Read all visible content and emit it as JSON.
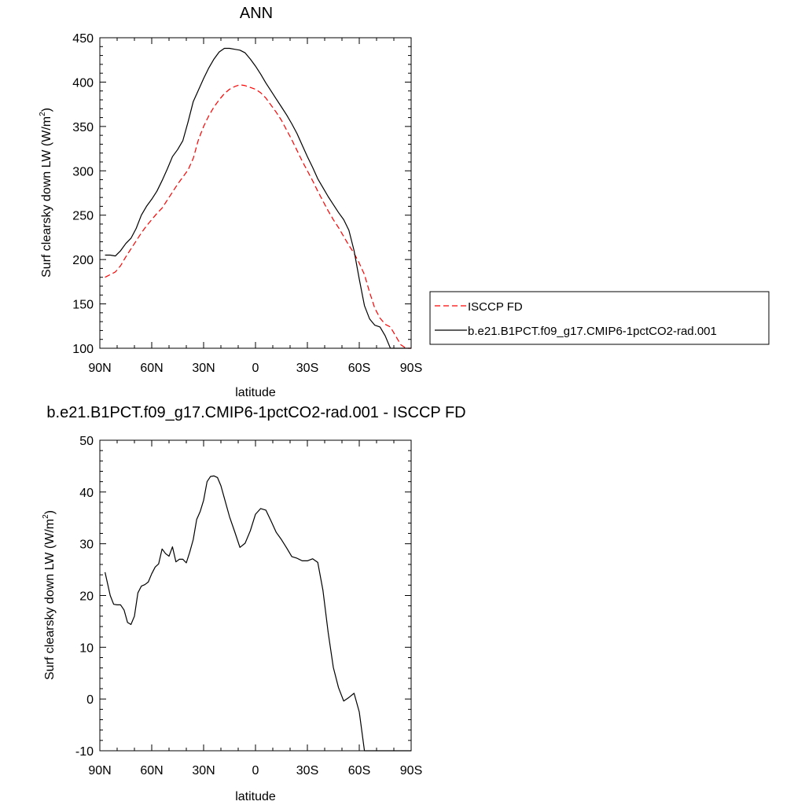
{
  "chart_data": [
    {
      "type": "line",
      "title": "ANN",
      "xlabel": "latitude",
      "ylabel": "Surf clearsky down LW",
      "yunit_base": "W/m",
      "yunit_exp": "2",
      "xlim": [
        90,
        -90
      ],
      "ylim": [
        100,
        450
      ],
      "x_ticks": [
        90,
        60,
        30,
        0,
        -30,
        -60,
        -90
      ],
      "x_tick_labels": [
        "90N",
        "60N",
        "30N",
        "0",
        "30S",
        "60S",
        "90S"
      ],
      "y_ticks": [
        100,
        150,
        200,
        250,
        300,
        350,
        400,
        450
      ],
      "legend": "right",
      "grid": false,
      "x": [
        87,
        84,
        81,
        78,
        75,
        72,
        69,
        66,
        63,
        60,
        57,
        54,
        51,
        48,
        45,
        42,
        39,
        36,
        33,
        30,
        27,
        24,
        21,
        18,
        15,
        12,
        9,
        6,
        3,
        0,
        -3,
        -6,
        -9,
        -12,
        -15,
        -18,
        -21,
        -24,
        -27,
        -30,
        -33,
        -36,
        -39,
        -42,
        -45,
        -48,
        -51,
        -54,
        -57,
        -60,
        -63,
        -66,
        -69,
        -72,
        -75,
        -78,
        -81,
        -84,
        -87,
        -90
      ],
      "series": [
        {
          "name": "ISCCP FD",
          "color": "#ff0000",
          "dash": true,
          "values": [
            180,
            183,
            186,
            193,
            203,
            212,
            221,
            230,
            238,
            245,
            252,
            258,
            267,
            276,
            285,
            293,
            301,
            314,
            335,
            350,
            362,
            372,
            380,
            387,
            392,
            395,
            397,
            396,
            394,
            392,
            388,
            382,
            374,
            366,
            357,
            346,
            335,
            323,
            311,
            300,
            289,
            277,
            266,
            255,
            245,
            236,
            226,
            216,
            207,
            196,
            183,
            163,
            145,
            134,
            127,
            124,
            114,
            104,
            96,
            95
          ]
        },
        {
          "name": "b.e21.B1PCT.f09_g17.CMIP6-1pctCO2-rad.001",
          "color": "#000000",
          "dash": false,
          "values": [
            205,
            205,
            204,
            210,
            218,
            224,
            235,
            250,
            260,
            268,
            277,
            289,
            302,
            316,
            324,
            334,
            355,
            378,
            391,
            404,
            416,
            426,
            434,
            438,
            438,
            437,
            436,
            433,
            426,
            418,
            409,
            399,
            390,
            381,
            372,
            363,
            353,
            342,
            329,
            316,
            304,
            291,
            281,
            271,
            262,
            253,
            245,
            233,
            210,
            178,
            148,
            133,
            126,
            124,
            114,
            96,
            96,
            96,
            96,
            96
          ]
        }
      ]
    },
    {
      "type": "line",
      "title": "b.e21.B1PCT.f09_g17.CMIP6-1pctCO2-rad.001 - ISCCP FD",
      "xlabel": "latitude",
      "ylabel": "Surf clearsky down LW",
      "yunit_base": "W/m",
      "yunit_exp": "2",
      "xlim": [
        90,
        -90
      ],
      "ylim": [
        -10,
        50
      ],
      "x_ticks": [
        90,
        60,
        30,
        0,
        -30,
        -60,
        -90
      ],
      "x_tick_labels": [
        "90N",
        "60N",
        "30N",
        "0",
        "30S",
        "60S",
        "90S"
      ],
      "y_ticks": [
        -10,
        0,
        10,
        20,
        30,
        40,
        50
      ],
      "grid": false,
      "x": [
        87,
        86,
        84,
        82,
        80,
        78,
        76,
        74,
        72,
        70,
        68,
        66,
        64,
        62,
        60,
        58,
        56,
        54,
        52,
        50,
        48,
        46,
        44,
        42,
        40,
        38,
        36,
        34,
        32,
        30,
        28,
        26,
        24,
        22,
        20,
        18,
        15,
        12,
        9,
        6,
        3,
        0,
        -3,
        -6,
        -9,
        -12,
        -15,
        -18,
        -21,
        -24,
        -27,
        -30,
        -33,
        -36,
        -39,
        -42,
        -45,
        -48,
        -51,
        -54,
        -57,
        -60,
        -63,
        -66,
        -69,
        -72,
        -75,
        -78,
        -81,
        -84,
        -87,
        -90
      ],
      "series": [
        {
          "name": "",
          "color": "#000000",
          "dash": false,
          "values": [
            24.5,
            23,
            20,
            18.3,
            18.2,
            18.2,
            17.2,
            14.8,
            14.4,
            16,
            20.5,
            21.8,
            22.1,
            22.6,
            24.2,
            25.5,
            26.1,
            29,
            28.1,
            27.6,
            29.4,
            26.5,
            27,
            27,
            26.3,
            28.4,
            30.8,
            34.7,
            36.2,
            38.4,
            42,
            43,
            43.1,
            42.8,
            41.2,
            38.8,
            35.2,
            32.3,
            29.3,
            30.1,
            32.5,
            35.7,
            36.8,
            36.5,
            34.4,
            32.2,
            30.8,
            29.2,
            27.5,
            27.2,
            26.7,
            26.7,
            27.1,
            26.4,
            21,
            12.9,
            6.1,
            2.2,
            -0.4,
            0.3,
            1.1,
            -2.5,
            -10.2,
            -10.5,
            -10.5,
            -10.5,
            -10.5,
            -10.5,
            -10.5,
            -10.5,
            -10.5,
            -10.5
          ]
        }
      ]
    }
  ]
}
